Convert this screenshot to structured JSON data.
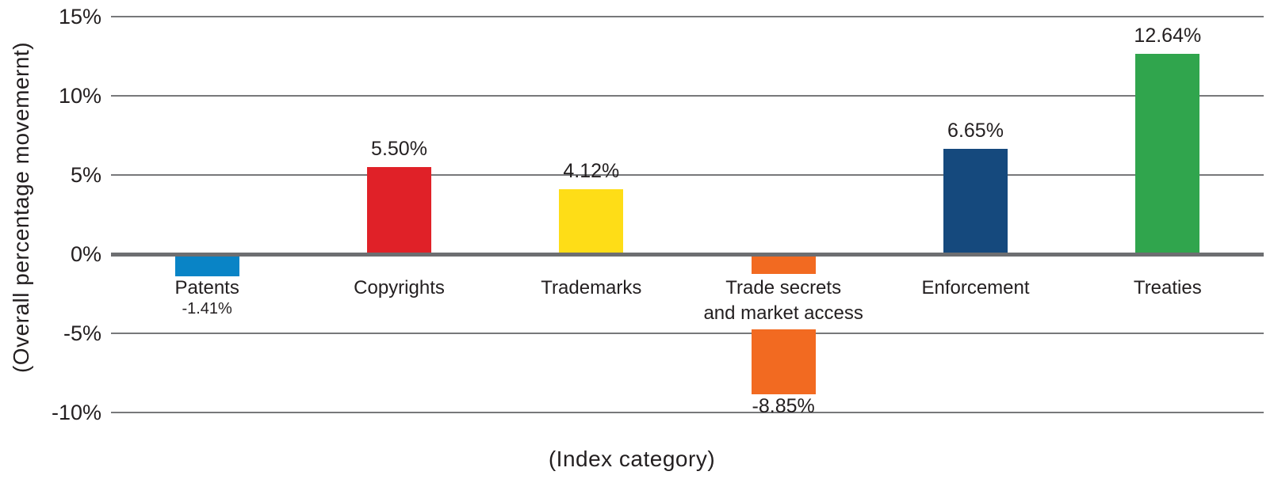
{
  "chart_data": {
    "type": "bar",
    "title": "",
    "xlabel": "(Index category)",
    "ylabel": "(Overall percentage movemernt)",
    "ylim": [
      -10,
      15
    ],
    "grid": "horizontal",
    "legend": "none",
    "yticks": [
      {
        "value": 15,
        "label": "15%"
      },
      {
        "value": 10,
        "label": "10%"
      },
      {
        "value": 5,
        "label": "5%"
      },
      {
        "value": 0,
        "label": "0%"
      },
      {
        "value": -5,
        "label": "-5%"
      },
      {
        "value": -10,
        "label": "-10%"
      }
    ],
    "categories": [
      "Patents",
      "Copyrights",
      "Trademarks",
      "Trade secrets and market access",
      "Enforcement",
      "Treaties"
    ],
    "values": [
      -1.41,
      5.5,
      4.12,
      -8.85,
      6.65,
      12.64
    ],
    "bars": [
      {
        "name": "Patents",
        "label_lines": [
          "Patents"
        ],
        "value": -1.41,
        "value_label": "-1.41%",
        "color": "#0984c6",
        "value_label_position": "below-category",
        "label_boxed": false
      },
      {
        "name": "Copyrights",
        "label_lines": [
          "Copyrights"
        ],
        "value": 5.5,
        "value_label": "5.50%",
        "color": "#e02128",
        "value_label_position": "above",
        "label_boxed": false
      },
      {
        "name": "Trademarks",
        "label_lines": [
          "Trademarks"
        ],
        "value": 4.12,
        "value_label": "4.12%",
        "color": "#fedd17",
        "value_label_position": "above",
        "label_boxed": false
      },
      {
        "name": "Trade secrets and market access",
        "label_lines": [
          "Trade secrets",
          "and market access"
        ],
        "value": -8.85,
        "value_label": "-8.85%",
        "color": "#f26a21",
        "value_label_position": "below-bar",
        "label_boxed": true
      },
      {
        "name": "Enforcement",
        "label_lines": [
          "Enforcement"
        ],
        "value": 6.65,
        "value_label": "6.65%",
        "color": "#15497d",
        "value_label_position": "above",
        "label_boxed": false
      },
      {
        "name": "Treaties",
        "label_lines": [
          "Treaties"
        ],
        "value": 12.64,
        "value_label": "12.64%",
        "color": "#30a54d",
        "value_label_position": "above",
        "label_boxed": false
      }
    ],
    "colors": {
      "gridline": "#77787a",
      "zero_axis": "#6d6e71",
      "text": "#231f20",
      "background": "#ffffff"
    }
  }
}
